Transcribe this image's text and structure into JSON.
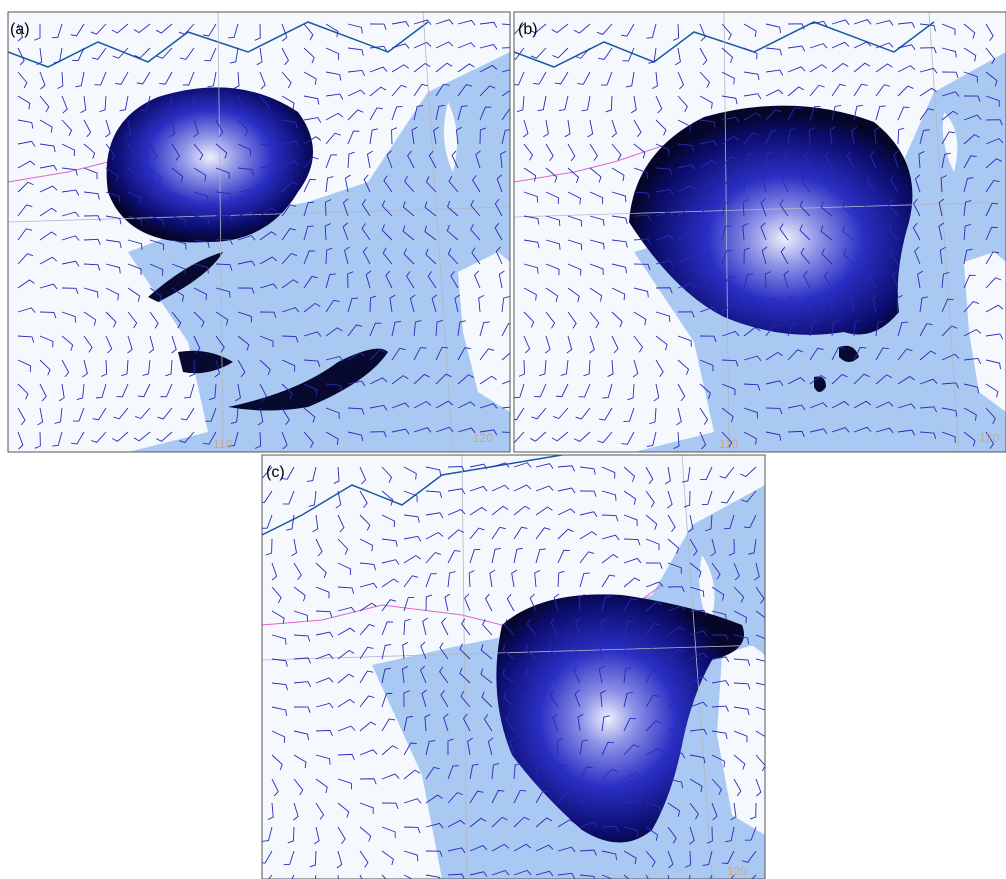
{
  "panels": [
    {
      "label": "(a)",
      "lon_labels": [
        "110",
        "120"
      ]
    },
    {
      "label": "(b)",
      "lon_labels": [
        "110",
        "120"
      ]
    },
    {
      "label": "(c)",
      "lon_labels": [
        "120"
      ]
    }
  ]
}
